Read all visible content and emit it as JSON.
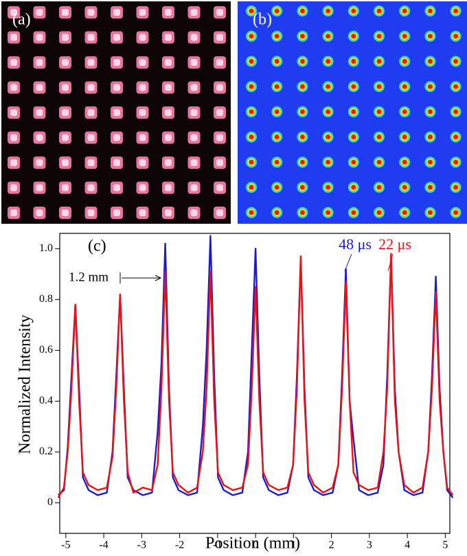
{
  "panels": {
    "a": "(a)",
    "b": "(b)"
  },
  "chart_data": {
    "type": "line",
    "annotation": "(c)",
    "spacing_label": "1.2 mm",
    "xlabel": "Position (mm)",
    "ylabel": "Normalized Intensity",
    "xlim": [
      -5.16,
      5.12
    ],
    "ylim": [
      -0.12,
      1.06
    ],
    "xticks": [
      -5,
      -4,
      -3,
      -2,
      -1,
      0,
      1,
      2,
      3,
      4,
      5
    ],
    "yticks": [
      0,
      0.2,
      0.4,
      0.6,
      0.8,
      {
        "value": 1,
        "label": "1.0"
      }
    ],
    "x": [
      -5.2,
      -5.05,
      -4.95,
      -4.85,
      -4.75,
      -4.65,
      -4.55,
      -4.4,
      -4.16,
      -3.92,
      -3.77,
      -3.67,
      -3.57,
      -3.47,
      -3.37,
      -3.22,
      -2.97,
      -2.73,
      -2.58,
      -2.48,
      -2.38,
      -2.28,
      -2.18,
      -2.03,
      -1.78,
      -1.54,
      -1.39,
      -1.29,
      -1.19,
      -1.09,
      -0.99,
      -0.84,
      -0.6,
      -0.35,
      -0.2,
      -0.1,
      0,
      0.1,
      0.2,
      0.35,
      0.6,
      0.84,
      0.99,
      1.09,
      1.19,
      1.29,
      1.39,
      1.54,
      1.78,
      2.03,
      2.18,
      2.28,
      2.38,
      2.48,
      2.58,
      2.73,
      2.97,
      3.22,
      3.37,
      3.47,
      3.57,
      3.67,
      3.77,
      3.92,
      4.16,
      4.4,
      4.55,
      4.65,
      4.75,
      4.85,
      4.95,
      5.05,
      5.2
    ],
    "series": [
      {
        "name": "48 μs",
        "color": "#1a1ad6",
        "values": [
          0.03,
          0.05,
          0.22,
          0.5,
          0.78,
          0.45,
          0.1,
          0.05,
          0.03,
          0.04,
          0.2,
          0.5,
          0.82,
          0.45,
          0.1,
          0.05,
          0.03,
          0.04,
          0.28,
          0.55,
          1.02,
          0.45,
          0.1,
          0.05,
          0.03,
          0.04,
          0.3,
          0.6,
          1.05,
          0.5,
          0.1,
          0.05,
          0.03,
          0.04,
          0.2,
          0.6,
          1.0,
          0.5,
          0.1,
          0.05,
          0.03,
          0.04,
          0.15,
          0.5,
          0.96,
          0.45,
          0.1,
          0.05,
          0.03,
          0.04,
          0.15,
          0.5,
          0.92,
          0.4,
          0.25,
          0.05,
          0.03,
          0.04,
          0.15,
          0.5,
          0.97,
          0.45,
          0.2,
          0.05,
          0.03,
          0.04,
          0.2,
          0.5,
          0.89,
          0.45,
          0.2,
          0.05,
          0.02
        ]
      },
      {
        "name": "22 μs",
        "color": "#f01010",
        "values": [
          0.02,
          0.06,
          0.2,
          0.45,
          0.78,
          0.4,
          0.12,
          0.07,
          0.05,
          0.06,
          0.18,
          0.45,
          0.82,
          0.4,
          0.12,
          0.04,
          0.06,
          0.05,
          0.15,
          0.45,
          0.91,
          0.4,
          0.12,
          0.07,
          0.04,
          0.06,
          0.2,
          0.45,
          0.91,
          0.4,
          0.12,
          0.07,
          0.05,
          0.06,
          0.15,
          0.45,
          0.85,
          0.4,
          0.12,
          0.07,
          0.05,
          0.06,
          0.15,
          0.45,
          0.97,
          0.4,
          0.12,
          0.07,
          0.04,
          0.06,
          0.15,
          0.45,
          0.87,
          0.4,
          0.12,
          0.07,
          0.05,
          0.06,
          0.2,
          0.45,
          0.98,
          0.4,
          0.2,
          0.07,
          0.04,
          0.06,
          0.2,
          0.45,
          0.83,
          0.4,
          0.2,
          0.06,
          0.03
        ]
      }
    ]
  }
}
